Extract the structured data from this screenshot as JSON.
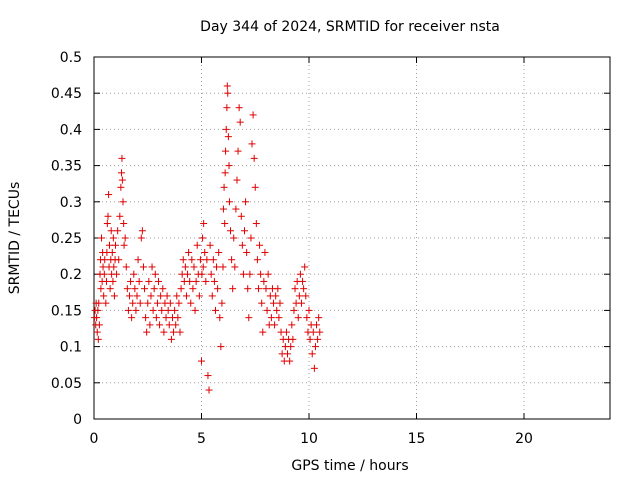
{
  "chart_data": {
    "type": "scatter",
    "title": "Day 344 of 2024, SRMTID for receiver nsta",
    "xlabel": "GPS time / hours",
    "ylabel": "SRMTID / TECUs",
    "xlim": [
      0,
      24
    ],
    "ylim": [
      0,
      0.5
    ],
    "xticks": [
      0,
      5,
      10,
      15,
      20
    ],
    "yticks": [
      0,
      0.05,
      0.1,
      0.15,
      0.2,
      0.25,
      0.3,
      0.35,
      0.4,
      0.45,
      0.5
    ],
    "xtick_labels": [
      "0",
      "5",
      "10",
      "15",
      "20"
    ],
    "ytick_labels": [
      "0",
      "0.05",
      "0.1",
      "0.15",
      "0.2",
      "0.25",
      "0.3",
      "0.35",
      "0.4",
      "0.45",
      "0.5"
    ],
    "grid": true,
    "marker": "+",
    "color": "#e00000",
    "series": [
      {
        "points": [
          [
            0.02,
            0.14
          ],
          [
            0.05,
            0.15
          ],
          [
            0.08,
            0.13
          ],
          [
            0.1,
            0.16
          ],
          [
            0.12,
            0.14
          ],
          [
            0.15,
            0.12
          ],
          [
            0.18,
            0.15
          ],
          [
            0.2,
            0.11
          ],
          [
            0.22,
            0.16
          ],
          [
            0.25,
            0.13
          ],
          [
            0.28,
            0.2
          ],
          [
            0.3,
            0.22
          ],
          [
            0.32,
            0.18
          ],
          [
            0.35,
            0.25
          ],
          [
            0.38,
            0.19
          ],
          [
            0.4,
            0.23
          ],
          [
            0.42,
            0.21
          ],
          [
            0.45,
            0.17
          ],
          [
            0.48,
            0.2
          ],
          [
            0.5,
            0.22
          ],
          [
            0.55,
            0.16
          ],
          [
            0.58,
            0.19
          ],
          [
            0.6,
            0.23
          ],
          [
            0.62,
            0.27
          ],
          [
            0.65,
            0.28
          ],
          [
            0.68,
            0.31
          ],
          [
            0.7,
            0.21
          ],
          [
            0.72,
            0.24
          ],
          [
            0.75,
            0.18
          ],
          [
            0.78,
            0.22
          ],
          [
            0.8,
            0.26
          ],
          [
            0.82,
            0.2
          ],
          [
            0.85,
            0.23
          ],
          [
            0.88,
            0.19
          ],
          [
            0.9,
            0.25
          ],
          [
            0.92,
            0.21
          ],
          [
            0.95,
            0.17
          ],
          [
            0.98,
            0.22
          ],
          [
            1.0,
            0.24
          ],
          [
            1.05,
            0.2
          ],
          [
            1.1,
            0.26
          ],
          [
            1.15,
            0.22
          ],
          [
            1.2,
            0.28
          ],
          [
            1.25,
            0.32
          ],
          [
            1.28,
            0.34
          ],
          [
            1.3,
            0.36
          ],
          [
            1.32,
            0.33
          ],
          [
            1.35,
            0.3
          ],
          [
            1.38,
            0.27
          ],
          [
            1.4,
            0.24
          ],
          [
            1.45,
            0.25
          ],
          [
            1.5,
            0.21
          ],
          [
            1.55,
            0.18
          ],
          [
            1.6,
            0.15
          ],
          [
            1.65,
            0.17
          ],
          [
            1.7,
            0.19
          ],
          [
            1.75,
            0.14
          ],
          [
            1.8,
            0.16
          ],
          [
            1.85,
            0.2
          ],
          [
            1.9,
            0.18
          ],
          [
            1.95,
            0.15
          ],
          [
            2.0,
            0.17
          ],
          [
            2.05,
            0.22
          ],
          [
            2.1,
            0.19
          ],
          [
            2.15,
            0.16
          ],
          [
            2.2,
            0.25
          ],
          [
            2.25,
            0.26
          ],
          [
            2.3,
            0.21
          ],
          [
            2.35,
            0.18
          ],
          [
            2.4,
            0.14
          ],
          [
            2.45,
            0.12
          ],
          [
            2.5,
            0.16
          ],
          [
            2.55,
            0.19
          ],
          [
            2.6,
            0.13
          ],
          [
            2.65,
            0.17
          ],
          [
            2.7,
            0.21
          ],
          [
            2.75,
            0.15
          ],
          [
            2.8,
            0.18
          ],
          [
            2.85,
            0.2
          ],
          [
            2.9,
            0.14
          ],
          [
            2.95,
            0.16
          ],
          [
            3.0,
            0.19
          ],
          [
            3.05,
            0.13
          ],
          [
            3.1,
            0.17
          ],
          [
            3.15,
            0.15
          ],
          [
            3.2,
            0.18
          ],
          [
            3.25,
            0.12
          ],
          [
            3.3,
            0.16
          ],
          [
            3.35,
            0.14
          ],
          [
            3.4,
            0.17
          ],
          [
            3.45,
            0.15
          ],
          [
            3.5,
            0.13
          ],
          [
            3.55,
            0.16
          ],
          [
            3.6,
            0.11
          ],
          [
            3.65,
            0.14
          ],
          [
            3.7,
            0.12
          ],
          [
            3.75,
            0.15
          ],
          [
            3.8,
            0.13
          ],
          [
            3.85,
            0.17
          ],
          [
            3.9,
            0.14
          ],
          [
            3.95,
            0.16
          ],
          [
            4.0,
            0.12
          ],
          [
            4.05,
            0.18
          ],
          [
            4.1,
            0.2
          ],
          [
            4.15,
            0.22
          ],
          [
            4.2,
            0.19
          ],
          [
            4.25,
            0.21
          ],
          [
            4.3,
            0.17
          ],
          [
            4.35,
            0.2
          ],
          [
            4.4,
            0.23
          ],
          [
            4.45,
            0.19
          ],
          [
            4.5,
            0.16
          ],
          [
            4.55,
            0.22
          ],
          [
            4.6,
            0.18
          ],
          [
            4.65,
            0.21
          ],
          [
            4.7,
            0.15
          ],
          [
            4.75,
            0.19
          ],
          [
            4.8,
            0.24
          ],
          [
            4.85,
            0.2
          ],
          [
            4.9,
            0.17
          ],
          [
            4.95,
            0.22
          ],
          [
            5.0,
            0.08
          ],
          [
            5.02,
            0.2
          ],
          [
            5.05,
            0.25
          ],
          [
            5.08,
            0.21
          ],
          [
            5.1,
            0.27
          ],
          [
            5.15,
            0.23
          ],
          [
            5.2,
            0.19
          ],
          [
            5.25,
            0.22
          ],
          [
            5.3,
            0.06
          ],
          [
            5.35,
            0.04
          ],
          [
            5.4,
            0.24
          ],
          [
            5.45,
            0.2
          ],
          [
            5.5,
            0.17
          ],
          [
            5.55,
            0.22
          ],
          [
            5.6,
            0.19
          ],
          [
            5.65,
            0.15
          ],
          [
            5.7,
            0.21
          ],
          [
            5.75,
            0.18
          ],
          [
            5.8,
            0.23
          ],
          [
            5.85,
            0.14
          ],
          [
            5.9,
            0.1
          ],
          [
            5.95,
            0.16
          ],
          [
            6.0,
            0.21
          ],
          [
            6.02,
            0.29
          ],
          [
            6.05,
            0.32
          ],
          [
            6.08,
            0.27
          ],
          [
            6.1,
            0.34
          ],
          [
            6.12,
            0.37
          ],
          [
            6.15,
            0.4
          ],
          [
            6.18,
            0.43
          ],
          [
            6.2,
            0.46
          ],
          [
            6.22,
            0.45
          ],
          [
            6.25,
            0.39
          ],
          [
            6.28,
            0.35
          ],
          [
            6.3,
            0.3
          ],
          [
            6.35,
            0.26
          ],
          [
            6.4,
            0.22
          ],
          [
            6.45,
            0.18
          ],
          [
            6.5,
            0.25
          ],
          [
            6.55,
            0.21
          ],
          [
            6.6,
            0.29
          ],
          [
            6.65,
            0.33
          ],
          [
            6.7,
            0.37
          ],
          [
            6.75,
            0.43
          ],
          [
            6.8,
            0.41
          ],
          [
            6.85,
            0.28
          ],
          [
            6.9,
            0.24
          ],
          [
            6.95,
            0.2
          ],
          [
            7.0,
            0.26
          ],
          [
            7.05,
            0.3
          ],
          [
            7.1,
            0.23
          ],
          [
            7.15,
            0.18
          ],
          [
            7.2,
            0.14
          ],
          [
            7.25,
            0.2
          ],
          [
            7.3,
            0.25
          ],
          [
            7.35,
            0.38
          ],
          [
            7.4,
            0.42
          ],
          [
            7.45,
            0.36
          ],
          [
            7.5,
            0.32
          ],
          [
            7.55,
            0.27
          ],
          [
            7.6,
            0.22
          ],
          [
            7.65,
            0.18
          ],
          [
            7.7,
            0.24
          ],
          [
            7.75,
            0.2
          ],
          [
            7.8,
            0.16
          ],
          [
            7.85,
            0.12
          ],
          [
            7.9,
            0.19
          ],
          [
            7.95,
            0.23
          ],
          [
            8.0,
            0.18
          ],
          [
            8.05,
            0.15
          ],
          [
            8.1,
            0.2
          ],
          [
            8.15,
            0.13
          ],
          [
            8.2,
            0.17
          ],
          [
            8.25,
            0.14
          ],
          [
            8.3,
            0.18
          ],
          [
            8.35,
            0.16
          ],
          [
            8.4,
            0.13
          ],
          [
            8.45,
            0.17
          ],
          [
            8.5,
            0.15
          ],
          [
            8.55,
            0.18
          ],
          [
            8.6,
            0.14
          ],
          [
            8.65,
            0.16
          ],
          [
            8.7,
            0.12
          ],
          [
            8.75,
            0.09
          ],
          [
            8.8,
            0.11
          ],
          [
            8.85,
            0.08
          ],
          [
            8.9,
            0.1
          ],
          [
            8.95,
            0.12
          ],
          [
            9.0,
            0.09
          ],
          [
            9.05,
            0.11
          ],
          [
            9.1,
            0.08
          ],
          [
            9.15,
            0.1
          ],
          [
            9.2,
            0.13
          ],
          [
            9.25,
            0.11
          ],
          [
            9.3,
            0.15
          ],
          [
            9.35,
            0.18
          ],
          [
            9.4,
            0.16
          ],
          [
            9.45,
            0.19
          ],
          [
            9.5,
            0.14
          ],
          [
            9.55,
            0.17
          ],
          [
            9.6,
            0.2
          ],
          [
            9.65,
            0.16
          ],
          [
            9.7,
            0.19
          ],
          [
            9.75,
            0.18
          ],
          [
            9.8,
            0.21
          ],
          [
            9.85,
            0.17
          ],
          [
            9.9,
            0.14
          ],
          [
            9.95,
            0.12
          ],
          [
            10.0,
            0.15
          ],
          [
            10.05,
            0.11
          ],
          [
            10.1,
            0.13
          ],
          [
            10.15,
            0.09
          ],
          [
            10.2,
            0.12
          ],
          [
            10.25,
            0.07
          ],
          [
            10.3,
            0.1
          ],
          [
            10.35,
            0.13
          ],
          [
            10.4,
            0.11
          ],
          [
            10.45,
            0.14
          ],
          [
            10.5,
            0.12
          ]
        ]
      }
    ]
  }
}
